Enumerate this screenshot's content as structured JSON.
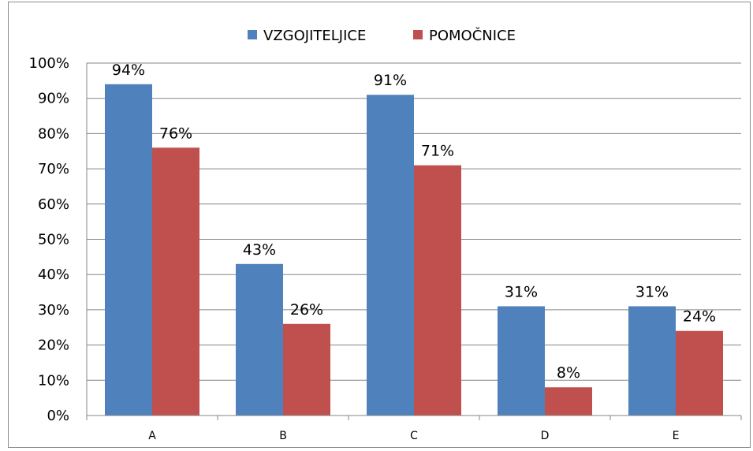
{
  "chart_data": {
    "type": "bar",
    "categories": [
      "A",
      "B",
      "C",
      "D",
      "E"
    ],
    "series": [
      {
        "name": "VZGOJITELJICE",
        "values": [
          94,
          43,
          91,
          31,
          31
        ],
        "color": "#4f81bd",
        "value_labels": [
          "94%",
          "43%",
          "91%",
          "31%",
          "31%"
        ]
      },
      {
        "name": "POMOČNICE",
        "values": [
          76,
          26,
          71,
          8,
          24
        ],
        "color": "#c0504d",
        "value_labels": [
          "76%",
          "26%",
          "71%",
          "8%",
          "24%"
        ]
      }
    ],
    "ylim": [
      0,
      100
    ],
    "yticks": [
      0,
      10,
      20,
      30,
      40,
      50,
      60,
      70,
      80,
      90,
      100
    ],
    "ytick_labels": [
      "0%",
      "10%",
      "20%",
      "30%",
      "40%",
      "50%",
      "60%",
      "70%",
      "80%",
      "90%",
      "100%"
    ],
    "grid": true,
    "legend_position": "top-center",
    "title": "",
    "xlabel": "",
    "ylabel": ""
  }
}
